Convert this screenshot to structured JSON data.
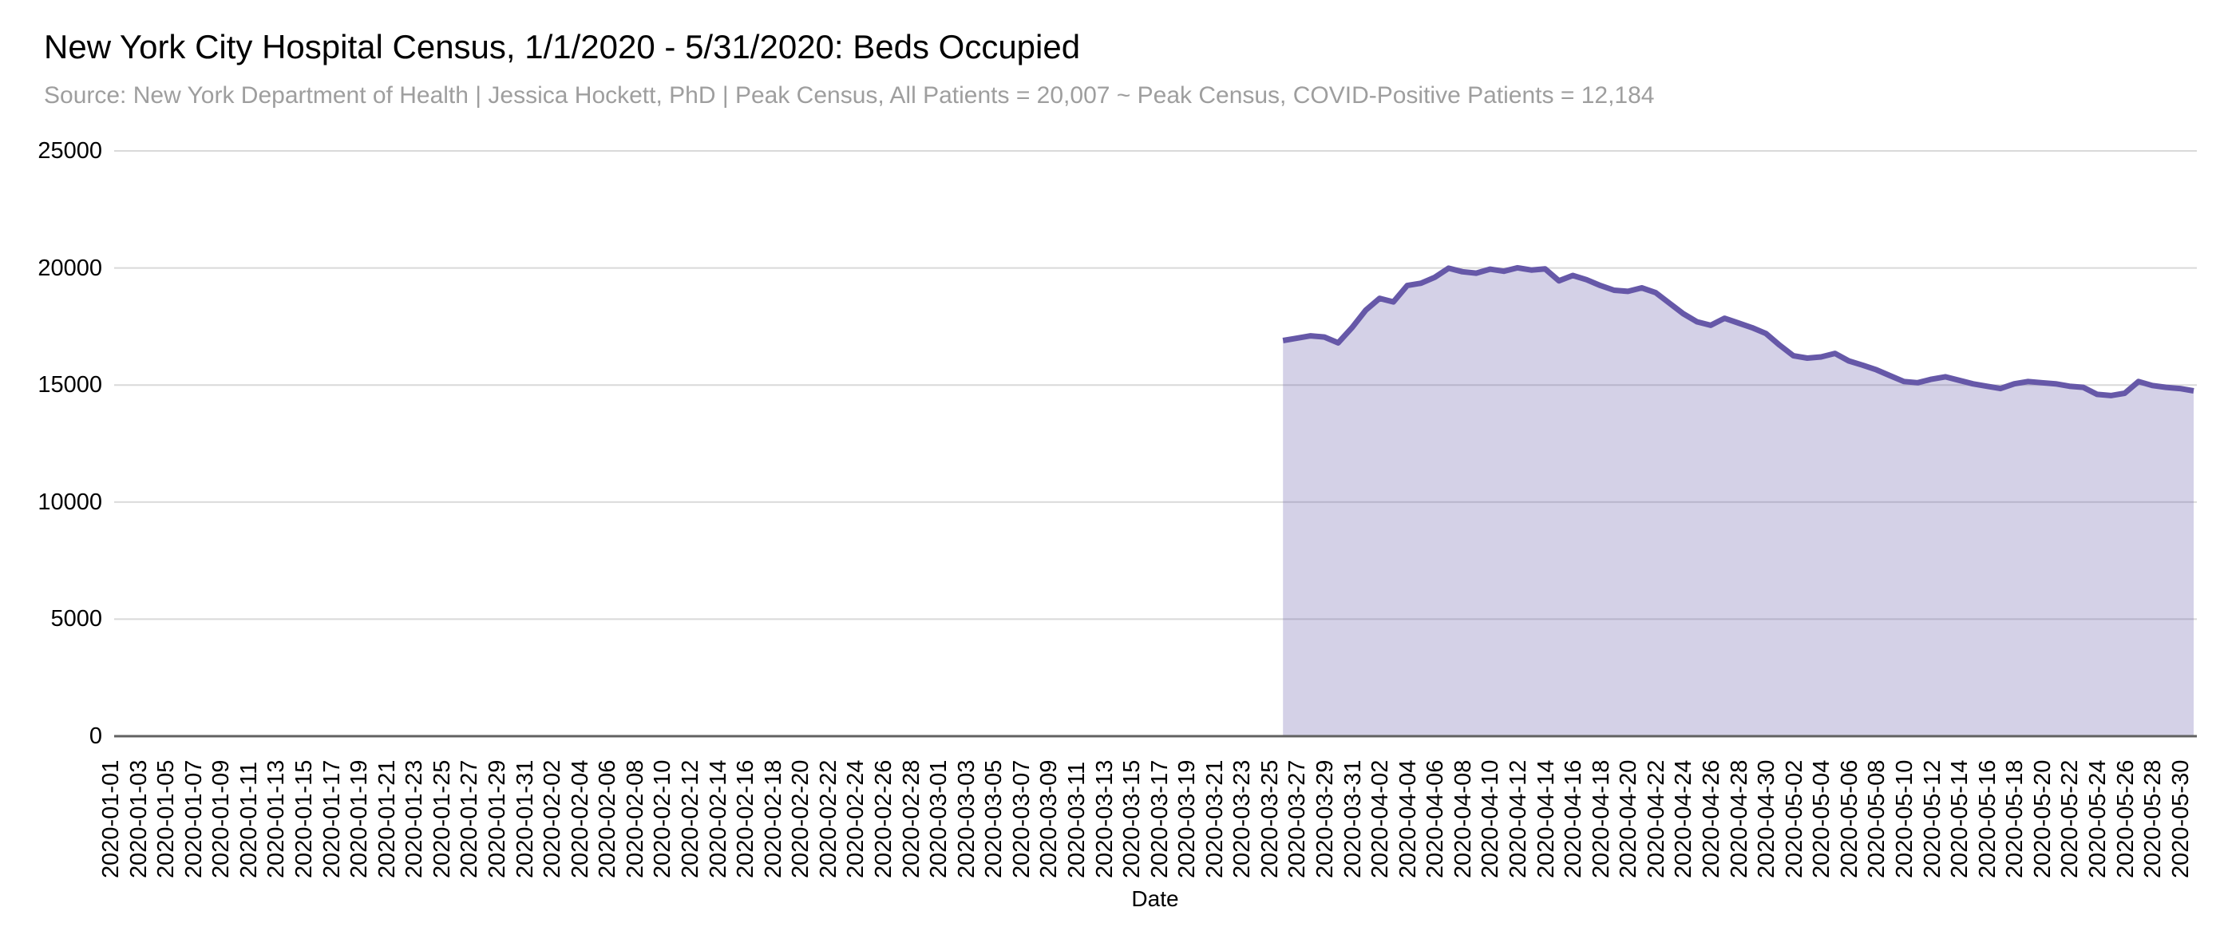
{
  "chart_data": {
    "type": "area",
    "title": "New York City Hospital Census, 1/1/2020 - 5/31/2020: Beds Occupied",
    "subtitle": "Source: New York Department of Health | Jessica Hockett, PhD | Peak Census, All Patients = 20,007 ~ Peak Census, COVID-Positive Patients = 12,184",
    "xlabel": "Date",
    "ylabel": "",
    "ylim": [
      0,
      25000
    ],
    "grid": "horizontal",
    "legend_position": "none",
    "y_ticks": [
      0,
      5000,
      10000,
      15000,
      20000,
      25000
    ],
    "x_tick_labels": [
      "2020-01-01",
      "2020-01-03",
      "2020-01-05",
      "2020-01-07",
      "2020-01-09",
      "2020-01-11",
      "2020-01-13",
      "2020-01-15",
      "2020-01-17",
      "2020-01-19",
      "2020-01-21",
      "2020-01-23",
      "2020-01-25",
      "2020-01-27",
      "2020-01-29",
      "2020-01-31",
      "2020-02-02",
      "2020-02-04",
      "2020-02-06",
      "2020-02-08",
      "2020-02-10",
      "2020-02-12",
      "2020-02-14",
      "2020-02-16",
      "2020-02-18",
      "2020-02-20",
      "2020-02-22",
      "2020-02-24",
      "2020-02-26",
      "2020-02-28",
      "2020-03-01",
      "2020-03-03",
      "2020-03-05",
      "2020-03-07",
      "2020-03-09",
      "2020-03-11",
      "2020-03-13",
      "2020-03-15",
      "2020-03-17",
      "2020-03-19",
      "2020-03-21",
      "2020-03-23",
      "2020-03-25",
      "2020-03-27",
      "2020-03-29",
      "2020-03-31",
      "2020-04-02",
      "2020-04-04",
      "2020-04-06",
      "2020-04-08",
      "2020-04-10",
      "2020-04-12",
      "2020-04-14",
      "2020-04-16",
      "2020-04-18",
      "2020-04-20",
      "2020-04-22",
      "2020-04-24",
      "2020-04-26",
      "2020-04-28",
      "2020-04-30",
      "2020-05-02",
      "2020-05-04",
      "2020-05-06",
      "2020-05-08",
      "2020-05-10",
      "2020-05-12",
      "2020-05-14",
      "2020-05-16",
      "2020-05-18",
      "2020-05-20",
      "2020-05-22",
      "2020-05-24",
      "2020-05-26",
      "2020-05-28",
      "2020-05-30"
    ],
    "peaks": {
      "all_patients": "20,007",
      "covid_positive": "12,184"
    },
    "series": [
      {
        "name": "Beds Occupied",
        "dates": [
          "2020-03-26",
          "2020-03-27",
          "2020-03-28",
          "2020-03-29",
          "2020-03-30",
          "2020-03-31",
          "2020-04-01",
          "2020-04-02",
          "2020-04-03",
          "2020-04-04",
          "2020-04-05",
          "2020-04-06",
          "2020-04-07",
          "2020-04-08",
          "2020-04-09",
          "2020-04-10",
          "2020-04-11",
          "2020-04-12",
          "2020-04-13",
          "2020-04-14",
          "2020-04-15",
          "2020-04-16",
          "2020-04-17",
          "2020-04-18",
          "2020-04-19",
          "2020-04-20",
          "2020-04-21",
          "2020-04-22",
          "2020-04-23",
          "2020-04-24",
          "2020-04-25",
          "2020-04-26",
          "2020-04-27",
          "2020-04-28",
          "2020-04-29",
          "2020-04-30",
          "2020-05-01",
          "2020-05-02",
          "2020-05-03",
          "2020-05-04",
          "2020-05-05",
          "2020-05-06",
          "2020-05-07",
          "2020-05-08",
          "2020-05-09",
          "2020-05-10",
          "2020-05-11",
          "2020-05-12",
          "2020-05-13",
          "2020-05-14",
          "2020-05-15",
          "2020-05-16",
          "2020-05-17",
          "2020-05-18",
          "2020-05-19",
          "2020-05-20",
          "2020-05-21",
          "2020-05-22",
          "2020-05-23",
          "2020-05-24",
          "2020-05-25",
          "2020-05-26",
          "2020-05-27",
          "2020-05-28",
          "2020-05-29",
          "2020-05-30",
          "2020-05-31"
        ],
        "values": [
          16900,
          17000,
          17100,
          17050,
          16800,
          17450,
          18200,
          18700,
          18550,
          19250,
          19350,
          19600,
          19990,
          19840,
          19780,
          19950,
          19860,
          20007,
          19910,
          19960,
          19450,
          19680,
          19500,
          19250,
          19050,
          19000,
          19150,
          18950,
          18500,
          18050,
          17700,
          17550,
          17850,
          17650,
          17450,
          17200,
          16700,
          16250,
          16150,
          16200,
          16350,
          16030,
          15850,
          15650,
          15400,
          15150,
          15100,
          15250,
          15350,
          15200,
          15050,
          14950,
          14850,
          15050,
          15150,
          15100,
          15050,
          14950,
          14900,
          14600,
          14550,
          14650,
          15150,
          14980,
          14900,
          14850,
          14750
        ]
      }
    ]
  },
  "style": {
    "line_color": "#6658a8",
    "fill_color": "rgba(102,88,168,0.28)",
    "grid_color": "#d9d9d9",
    "axis_line_color": "#616161",
    "title_color": "#000000",
    "subtitle_color": "#9e9e9e",
    "tick_label_color": "#000000",
    "background": "#ffffff"
  }
}
